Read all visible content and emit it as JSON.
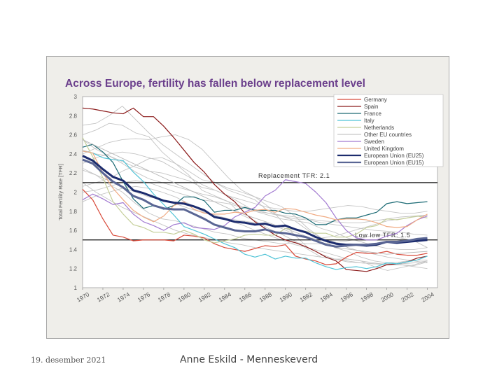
{
  "chart_data": {
    "type": "line",
    "title": "Across Europe, fertility has fallen below replacement level",
    "ylabel": "Total Fertility Rate [TFR]",
    "xlabel": "",
    "xlim": [
      1970,
      2005
    ],
    "ylim": [
      1,
      3
    ],
    "yticks": [
      "1",
      "1.2",
      "1.4",
      "1.6",
      "1.8",
      "2",
      "2.2",
      "2.4",
      "2.6",
      "2.8",
      "3"
    ],
    "xticks": [
      "1970",
      "1972",
      "1974",
      "1976",
      "1978",
      "1980",
      "1982",
      "1984",
      "1986",
      "1988",
      "1990",
      "1992",
      "1994",
      "1996",
      "1998",
      "2000",
      "2002",
      "2004"
    ],
    "reference_lines": [
      {
        "label": "Replacement TFR: 2.1",
        "value": 2.1
      },
      {
        "label": "Low low TFR: 1.5",
        "value": 1.5
      }
    ],
    "series": [
      {
        "name": "Germany",
        "color": "#d84a3a",
        "width": 1.2,
        "x": [
          1970,
          1971,
          1972,
          1973,
          1974,
          1975,
          1976,
          1977,
          1978,
          1979,
          1980,
          1981,
          1982,
          1983,
          1984,
          1985,
          1986,
          1987,
          1988,
          1989,
          1990,
          1991,
          1992,
          1993,
          1994,
          1995,
          1996,
          1997,
          1998,
          1999,
          2000,
          2001,
          2002,
          2003,
          2004
        ],
        "values": [
          2.03,
          1.92,
          1.72,
          1.55,
          1.53,
          1.49,
          1.5,
          1.5,
          1.5,
          1.49,
          1.55,
          1.54,
          1.52,
          1.46,
          1.42,
          1.4,
          1.38,
          1.41,
          1.44,
          1.43,
          1.45,
          1.33,
          1.3,
          1.28,
          1.24,
          1.25,
          1.32,
          1.37,
          1.36,
          1.36,
          1.38,
          1.35,
          1.34,
          1.34,
          1.36
        ]
      },
      {
        "name": "Spain",
        "color": "#8b1a1a",
        "width": 1.2,
        "x": [
          1970,
          1971,
          1972,
          1973,
          1974,
          1975,
          1976,
          1977,
          1978,
          1979,
          1980,
          1981,
          1982,
          1983,
          1984,
          1985,
          1986,
          1987,
          1988,
          1989,
          1990,
          1991,
          1992,
          1993,
          1994,
          1995,
          1996,
          1997,
          1998,
          1999,
          2000,
          2001,
          2002,
          2003,
          2004
        ],
        "values": [
          2.88,
          2.87,
          2.85,
          2.83,
          2.82,
          2.88,
          2.79,
          2.79,
          2.69,
          2.57,
          2.44,
          2.31,
          2.21,
          2.08,
          1.98,
          1.9,
          1.78,
          1.69,
          1.62,
          1.55,
          1.5,
          1.47,
          1.43,
          1.38,
          1.32,
          1.28,
          1.19,
          1.18,
          1.17,
          1.2,
          1.24,
          1.25,
          1.27,
          1.31,
          1.33
        ]
      },
      {
        "name": "France",
        "color": "#1c6b75",
        "width": 1.2,
        "x": [
          1970,
          1971,
          1972,
          1973,
          1974,
          1975,
          1976,
          1977,
          1978,
          1979,
          1980,
          1981,
          1982,
          1983,
          1984,
          1985,
          1986,
          1987,
          1988,
          1989,
          1990,
          1991,
          1992,
          1993,
          1994,
          1995,
          1996,
          1997,
          1998,
          1999,
          2000,
          2001,
          2002,
          2003,
          2004
        ],
        "values": [
          2.47,
          2.5,
          2.42,
          2.31,
          2.11,
          1.93,
          1.83,
          1.86,
          1.82,
          1.86,
          1.95,
          1.95,
          1.91,
          1.79,
          1.81,
          1.81,
          1.84,
          1.81,
          1.81,
          1.81,
          1.78,
          1.77,
          1.73,
          1.66,
          1.66,
          1.71,
          1.73,
          1.73,
          1.76,
          1.79,
          1.88,
          1.9,
          1.88,
          1.89,
          1.9
        ]
      },
      {
        "name": "Italy",
        "color": "#4fc3d6",
        "width": 1.2,
        "x": [
          1970,
          1971,
          1972,
          1973,
          1974,
          1975,
          1976,
          1977,
          1978,
          1979,
          1980,
          1981,
          1982,
          1983,
          1984,
          1985,
          1986,
          1987,
          1988,
          1989,
          1990,
          1991,
          1992,
          1993,
          1994,
          1995,
          1996,
          1997,
          1998,
          1999,
          2000,
          2001,
          2002,
          2003,
          2004
        ],
        "values": [
          2.43,
          2.41,
          2.36,
          2.34,
          2.33,
          2.21,
          2.11,
          1.98,
          1.87,
          1.76,
          1.64,
          1.6,
          1.56,
          1.51,
          1.46,
          1.42,
          1.35,
          1.32,
          1.35,
          1.3,
          1.33,
          1.31,
          1.31,
          1.26,
          1.22,
          1.19,
          1.21,
          1.22,
          1.2,
          1.22,
          1.26,
          1.25,
          1.27,
          1.29,
          1.33
        ]
      },
      {
        "name": "Netherlands",
        "color": "#c5cf9a",
        "width": 1.2,
        "x": [
          1970,
          1971,
          1972,
          1973,
          1974,
          1975,
          1976,
          1977,
          1978,
          1979,
          1980,
          1981,
          1982,
          1983,
          1984,
          1985,
          1986,
          1987,
          1988,
          1989,
          1990,
          1991,
          1992,
          1993,
          1994,
          1995,
          1996,
          1997,
          1998,
          1999,
          2000,
          2001,
          2002,
          2003,
          2004
        ],
        "values": [
          2.57,
          2.37,
          2.15,
          1.9,
          1.77,
          1.66,
          1.63,
          1.58,
          1.58,
          1.56,
          1.6,
          1.56,
          1.5,
          1.47,
          1.49,
          1.51,
          1.55,
          1.56,
          1.55,
          1.55,
          1.62,
          1.61,
          1.59,
          1.57,
          1.57,
          1.53,
          1.53,
          1.56,
          1.63,
          1.65,
          1.72,
          1.71,
          1.73,
          1.75,
          1.73
        ]
      },
      {
        "name": "Other EU countries",
        "color": "#b9b9b9",
        "width": 0.9,
        "x": [
          1970,
          1975,
          1980,
          1985,
          1990,
          1995,
          2000,
          2004
        ],
        "values": [
          2.55,
          2.3,
          2.05,
          1.8,
          1.62,
          1.42,
          1.35,
          1.38
        ]
      },
      {
        "name": "Sweden",
        "color": "#a27ad1",
        "width": 1.2,
        "x": [
          1970,
          1971,
          1972,
          1973,
          1974,
          1975,
          1976,
          1977,
          1978,
          1979,
          1980,
          1981,
          1982,
          1983,
          1984,
          1985,
          1986,
          1987,
          1988,
          1989,
          1990,
          1991,
          1992,
          1993,
          1994,
          1995,
          1996,
          1997,
          1998,
          1999,
          2000,
          2001,
          2002,
          2003,
          2004
        ],
        "values": [
          1.92,
          1.98,
          1.93,
          1.87,
          1.89,
          1.77,
          1.69,
          1.65,
          1.6,
          1.66,
          1.68,
          1.63,
          1.62,
          1.61,
          1.65,
          1.74,
          1.79,
          1.84,
          1.96,
          2.02,
          2.13,
          2.11,
          2.09,
          2.0,
          1.89,
          1.73,
          1.6,
          1.52,
          1.5,
          1.5,
          1.54,
          1.57,
          1.65,
          1.71,
          1.75
        ]
      },
      {
        "name": "United Kingdom",
        "color": "#f0aa82",
        "width": 1.2,
        "x": [
          1970,
          1971,
          1972,
          1973,
          1974,
          1975,
          1976,
          1977,
          1978,
          1979,
          1980,
          1981,
          1982,
          1983,
          1984,
          1985,
          1986,
          1987,
          1988,
          1989,
          1990,
          1991,
          1992,
          1993,
          1994,
          1995,
          1996,
          1997,
          1998,
          1999,
          2000,
          2001,
          2002,
          2003,
          2004
        ],
        "values": [
          2.43,
          2.41,
          2.2,
          2.04,
          1.92,
          1.81,
          1.74,
          1.69,
          1.75,
          1.86,
          1.9,
          1.82,
          1.78,
          1.77,
          1.77,
          1.79,
          1.78,
          1.81,
          1.82,
          1.79,
          1.83,
          1.82,
          1.79,
          1.76,
          1.74,
          1.71,
          1.72,
          1.72,
          1.71,
          1.68,
          1.64,
          1.63,
          1.64,
          1.71,
          1.77
        ]
      },
      {
        "name": "European Union (EU25)",
        "color": "#1c2c6e",
        "width": 3,
        "x": [
          1970,
          1971,
          1972,
          1973,
          1974,
          1975,
          1976,
          1977,
          1978,
          1979,
          1980,
          1981,
          1982,
          1983,
          1984,
          1985,
          1986,
          1987,
          1988,
          1989,
          1990,
          1991,
          1992,
          1993,
          1994,
          1995,
          1996,
          1997,
          1998,
          1999,
          2000,
          2001,
          2002,
          2003,
          2004
        ],
        "values": [
          2.38,
          2.33,
          2.24,
          2.16,
          2.12,
          2.02,
          1.99,
          1.95,
          1.91,
          1.89,
          1.88,
          1.85,
          1.81,
          1.74,
          1.72,
          1.69,
          1.68,
          1.66,
          1.67,
          1.64,
          1.65,
          1.61,
          1.58,
          1.53,
          1.49,
          1.46,
          1.45,
          1.45,
          1.44,
          1.45,
          1.48,
          1.47,
          1.48,
          1.49,
          1.5
        ]
      },
      {
        "name": "European Union (EU15)",
        "color": "#5a6694",
        "width": 3,
        "x": [
          1970,
          1971,
          1972,
          1973,
          1974,
          1975,
          1976,
          1977,
          1978,
          1979,
          1980,
          1981,
          1982,
          1983,
          1984,
          1985,
          1986,
          1987,
          1988,
          1989,
          1990,
          1991,
          1992,
          1993,
          1994,
          1995,
          1996,
          1997,
          1998,
          1999,
          2000,
          2001,
          2002,
          2003,
          2004
        ],
        "values": [
          2.34,
          2.3,
          2.2,
          2.11,
          2.05,
          1.96,
          1.92,
          1.86,
          1.83,
          1.82,
          1.82,
          1.77,
          1.72,
          1.66,
          1.63,
          1.6,
          1.59,
          1.59,
          1.61,
          1.58,
          1.57,
          1.55,
          1.53,
          1.49,
          1.45,
          1.43,
          1.44,
          1.45,
          1.45,
          1.46,
          1.48,
          1.48,
          1.49,
          1.51,
          1.52
        ]
      }
    ],
    "background_countries": [
      {
        "values": [
          2.6,
          2.65,
          2.72,
          2.7,
          2.62,
          2.58,
          2.42,
          2.3,
          2.18,
          2.02,
          1.96,
          1.9,
          1.76,
          1.7,
          1.62,
          1.56,
          1.49,
          1.4,
          1.32,
          1.3,
          1.3,
          1.28,
          1.22,
          1.18,
          1.21,
          1.24,
          1.28
        ]
      },
      {
        "values": [
          2.44,
          2.4,
          2.38,
          2.32,
          2.26,
          2.22,
          2.2,
          2.16,
          2.12,
          2.05,
          2.02,
          1.96,
          1.88,
          1.8,
          1.76,
          1.72,
          1.7,
          1.68,
          1.62,
          1.58,
          1.52,
          1.48,
          1.44,
          1.41,
          1.4,
          1.4,
          1.42
        ]
      },
      {
        "values": [
          2.06,
          2.1,
          2.14,
          2.22,
          2.28,
          2.35,
          2.36,
          2.3,
          2.22,
          2.13,
          2.1,
          2.04,
          2.0,
          1.95,
          1.85,
          1.7,
          1.55,
          1.42,
          1.35,
          1.3,
          1.27,
          1.26,
          1.25,
          1.25,
          1.24,
          1.23,
          1.27
        ]
      },
      {
        "values": [
          2.23,
          2.18,
          2.08,
          2.0,
          1.88,
          1.78,
          1.72,
          1.7,
          1.66,
          1.62,
          1.58,
          1.56,
          1.52,
          1.5,
          1.48,
          1.46,
          1.47,
          1.46,
          1.46,
          1.47,
          1.49,
          1.52,
          1.55,
          1.55,
          1.52,
          1.49,
          1.42
        ]
      },
      {
        "values": [
          2.55,
          2.45,
          2.38,
          2.3,
          2.21,
          2.14,
          2.1,
          2.06,
          2.02,
          1.98,
          1.95,
          1.9,
          1.85,
          1.82,
          1.78,
          1.75,
          1.72,
          1.71,
          1.68,
          1.66,
          1.64,
          1.62,
          1.6,
          1.59,
          1.58,
          1.56,
          1.55
        ]
      },
      {
        "values": [
          1.9,
          1.96,
          2.0,
          2.04,
          2.06,
          2.04,
          2.0,
          1.95,
          1.88,
          1.8,
          1.74,
          1.7,
          1.66,
          1.6,
          1.55,
          1.5,
          1.45,
          1.42,
          1.38,
          1.34,
          1.3,
          1.28,
          1.26,
          1.24,
          1.24,
          1.22,
          1.2
        ]
      },
      {
        "values": [
          2.4,
          2.46,
          2.52,
          2.55,
          2.56,
          2.55,
          2.58,
          2.6,
          2.55,
          2.45,
          2.3,
          2.15,
          2.02,
          1.95,
          1.9,
          1.85,
          1.75,
          1.62,
          1.52,
          1.48,
          1.42,
          1.38,
          1.35,
          1.32,
          1.3,
          1.28,
          1.26
        ]
      },
      {
        "values": [
          2.7,
          2.72,
          2.8,
          2.9,
          2.76,
          2.62,
          2.5,
          2.4,
          2.3,
          2.2,
          2.1,
          2.02,
          1.97,
          1.92,
          1.8,
          1.75,
          1.7,
          1.6,
          1.52,
          1.42,
          1.38,
          1.32,
          1.28,
          1.26,
          1.27,
          1.29,
          1.29
        ]
      },
      {
        "values": [
          2.25,
          2.18,
          2.12,
          2.05,
          2.0,
          1.95,
          1.92,
          1.88,
          1.83,
          1.79,
          1.76,
          1.72,
          1.7,
          1.68,
          1.66,
          1.62,
          1.56,
          1.52,
          1.52,
          1.54,
          1.58,
          1.62,
          1.66,
          1.7,
          1.72,
          1.74,
          1.76
        ]
      },
      {
        "values": [
          2.3,
          2.36,
          2.4,
          2.42,
          2.4,
          2.36,
          2.32,
          2.24,
          2.16,
          2.08,
          2.02,
          1.96,
          1.92,
          1.88,
          1.84,
          1.82,
          1.8,
          1.8,
          1.82,
          1.84,
          1.86,
          1.85,
          1.82,
          1.8,
          1.78,
          1.78,
          1.8
        ]
      },
      {
        "values": [
          2.1,
          2.0,
          1.92,
          1.84,
          1.78,
          1.72,
          1.66,
          1.6,
          1.56,
          1.53,
          1.5,
          1.47,
          1.45,
          1.42,
          1.4,
          1.38,
          1.36,
          1.34,
          1.32,
          1.3,
          1.28,
          1.26,
          1.25,
          1.24,
          1.25,
          1.26,
          1.28
        ]
      },
      {
        "values": [
          2.0,
          2.02,
          2.06,
          2.1,
          2.12,
          2.1,
          2.05,
          2.0,
          1.96,
          1.92,
          1.9,
          1.88,
          1.84,
          1.8,
          1.78,
          1.76,
          1.74,
          1.72,
          1.7,
          1.69,
          1.68,
          1.68,
          1.7,
          1.72,
          1.74,
          1.75,
          1.76
        ]
      }
    ]
  },
  "footer": {
    "date": "19. desember 2021",
    "author": "Anne Eskild - Menneskeverd"
  }
}
